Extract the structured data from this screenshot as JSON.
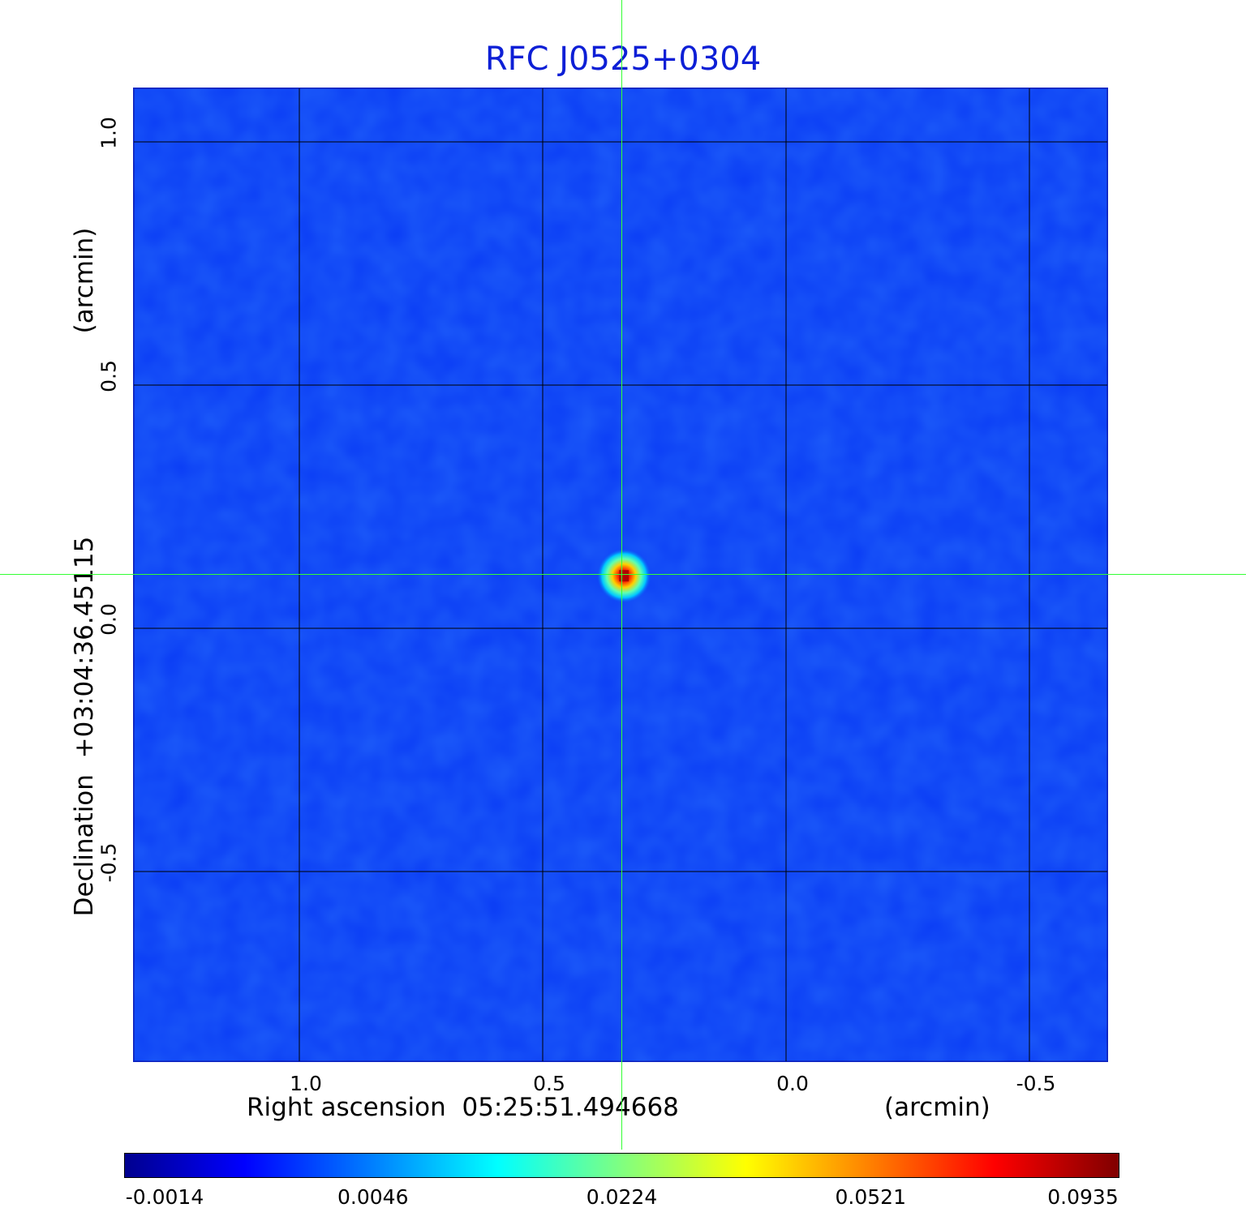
{
  "chart_data": {
    "type": "heatmap",
    "title": "RFC J0525+0304",
    "xlabel": "Right ascension  05:25:51.494668",
    "xunit": "(arcmin)",
    "ylabel": "Declination  +03:04:36.45115",
    "yunit": "(arcmin)",
    "x_ticks": [
      "1.0",
      "0.5",
      "0.0",
      "-0.5"
    ],
    "x_tick_values": [
      1.0,
      0.5,
      0.0,
      -0.5
    ],
    "y_ticks": [
      "1.0",
      "0.5",
      "0.0",
      "-0.5"
    ],
    "y_tick_values": [
      1.0,
      0.5,
      0.0,
      -0.5
    ],
    "xlim": [
      1.34,
      -0.66
    ],
    "ylim": [
      -0.89,
      1.11
    ],
    "grid": true,
    "colormap": "jet",
    "colorbar_ticks": [
      "-0.0014",
      "0.0046",
      "0.0224",
      "0.0521",
      "0.0935"
    ],
    "colorbar_tick_values": [
      -0.0014,
      0.0046,
      0.0224,
      0.0521,
      0.0935
    ],
    "source_peak": {
      "x": 0.333,
      "y": 0.108,
      "value": 0.0935
    },
    "background_color": "#0a3cf5",
    "crosshair_color": "#33ff33"
  }
}
